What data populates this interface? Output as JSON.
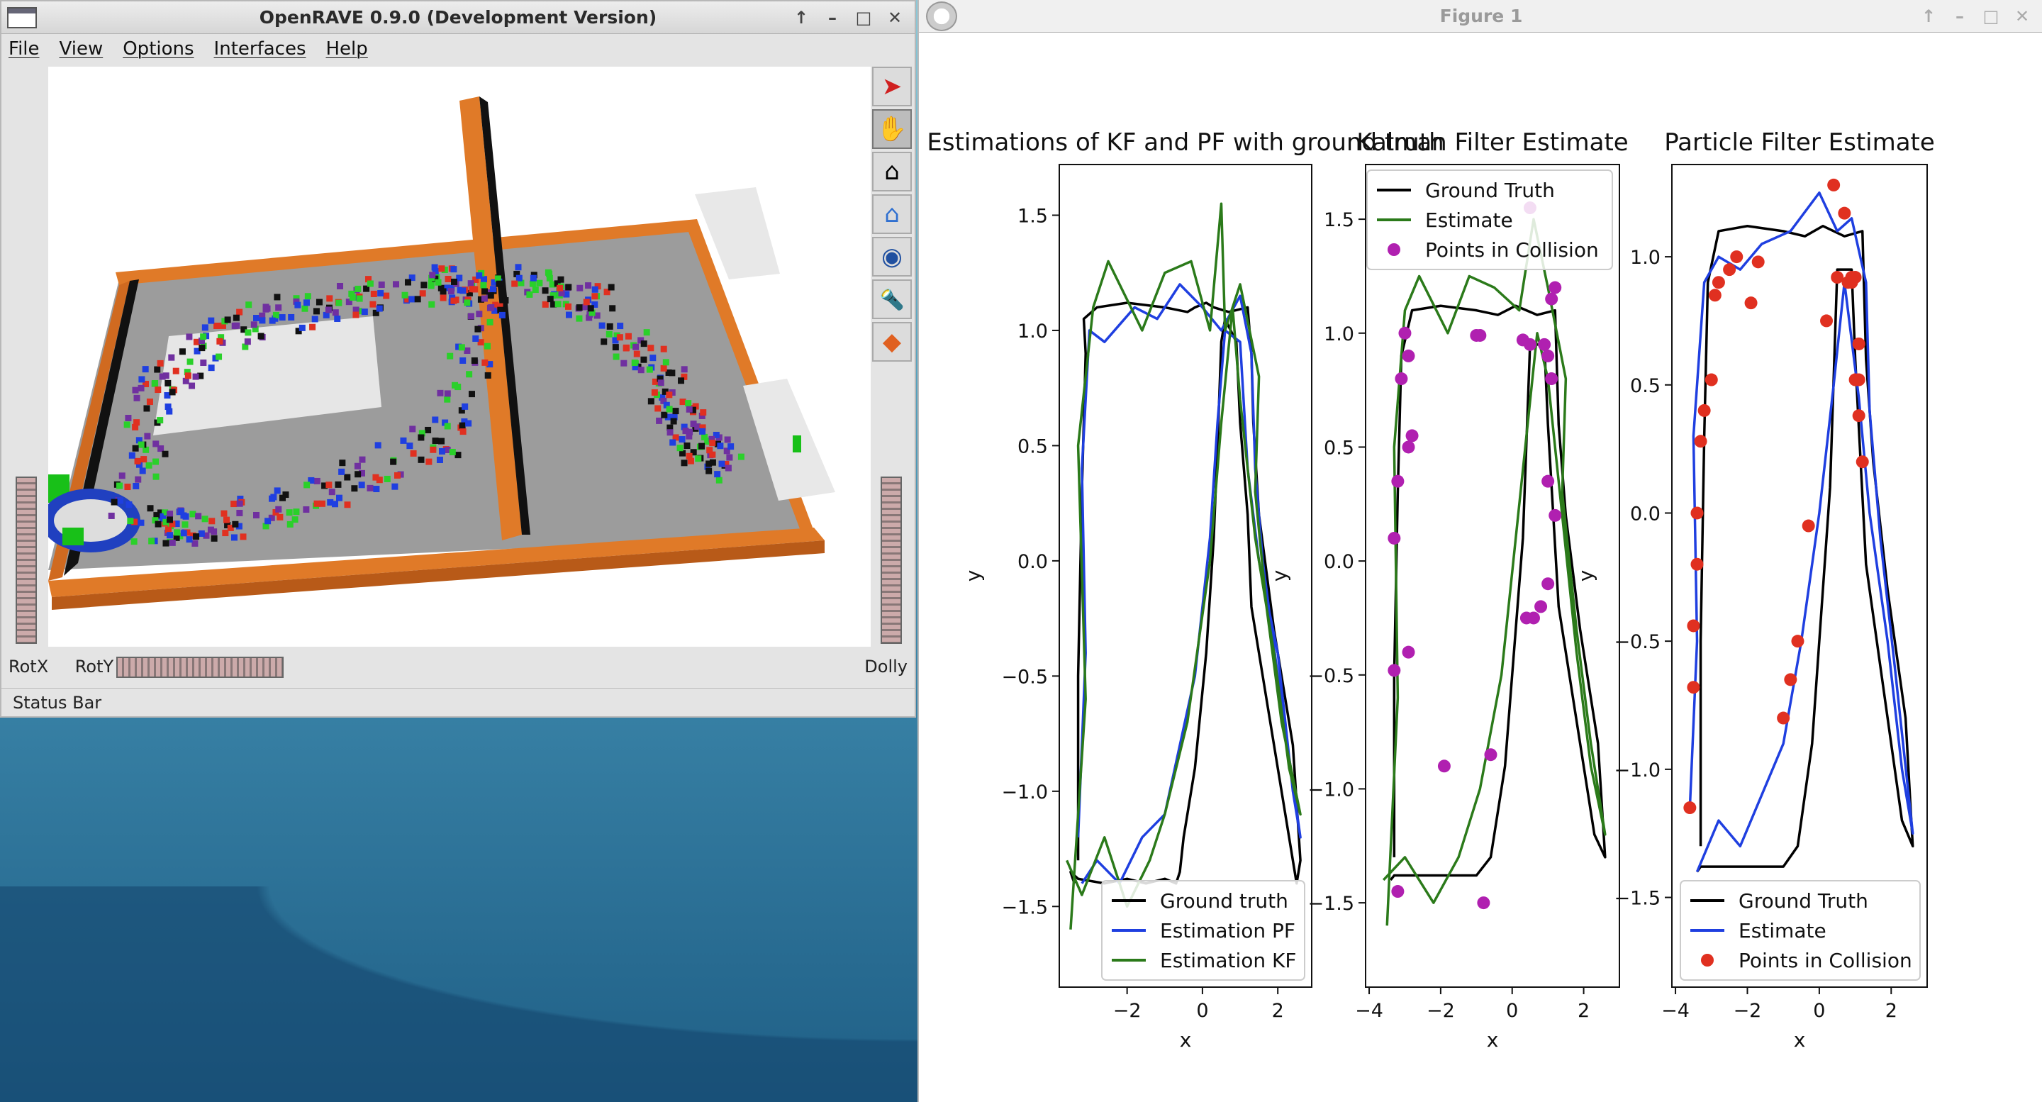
{
  "openrave": {
    "title": "OpenRAVE 0.9.0 (Development Version)",
    "menu": [
      "File",
      "View",
      "Options",
      "Interfaces",
      "Help"
    ],
    "window_buttons": [
      "↑",
      "–",
      "□",
      "✕"
    ],
    "tools": [
      {
        "icon": "select-arrow-icon",
        "glyph": "➤",
        "active": false
      },
      {
        "icon": "hand-icon",
        "glyph": "✋",
        "active": true
      },
      {
        "icon": "home-icon",
        "glyph": "⌂",
        "active": false
      },
      {
        "icon": "view-all-icon",
        "glyph": "⌂",
        "active": false
      },
      {
        "icon": "eye-icon",
        "glyph": "◉",
        "active": false
      },
      {
        "icon": "flashlight-icon",
        "glyph": "🔦",
        "active": false
      },
      {
        "icon": "perspective-icon",
        "glyph": "◆",
        "active": false
      }
    ],
    "rotx_label": "RotX",
    "roty_label": "RotY",
    "dolly_label": "Dolly",
    "status": "Status Bar"
  },
  "figure": {
    "title": "Figure 1",
    "window_buttons": [
      "↑",
      "–",
      "□",
      "✕"
    ]
  },
  "chart_data": [
    {
      "type": "line",
      "title": "Estimations of KF and PF with ground truth",
      "xlabel": "x",
      "ylabel": "y",
      "xlim": [
        -3.8,
        2.9
      ],
      "ylim": [
        -1.85,
        1.72
      ],
      "xticks": [
        -2,
        0,
        2
      ],
      "yticks": [
        -1.5,
        -1.0,
        -0.5,
        0.0,
        0.5,
        1.0,
        1.5
      ],
      "legend_position": "lower right",
      "grid": false,
      "series": [
        {
          "name": "Ground truth",
          "color": "#000000",
          "x": [
            -3.3,
            -3.3,
            -3.2,
            -3.1,
            -3.15,
            -2.8,
            -2.0,
            -1.0,
            -0.4,
            -0.2,
            0.1,
            0.3,
            0.7,
            1.2,
            1.3,
            1.35,
            1.5,
            1.9,
            2.4,
            2.6,
            2.5,
            2.3,
            1.8,
            1.3,
            1.2,
            1.0,
            0.9,
            0.6,
            0.5,
            0.4,
            0.3,
            0.1,
            -0.2,
            -0.5,
            -0.6,
            -0.7,
            -1.0,
            -1.5,
            -2.0,
            -2.6,
            -3.3,
            -3.5,
            -3.4
          ],
          "y": [
            -1.3,
            -0.5,
            0.3,
            0.9,
            1.05,
            1.1,
            1.12,
            1.1,
            1.08,
            1.1,
            1.12,
            1.1,
            1.08,
            1.1,
            0.9,
            0.6,
            0.2,
            -0.3,
            -0.8,
            -1.3,
            -1.4,
            -1.2,
            -0.7,
            -0.2,
            0.2,
            0.6,
            0.95,
            1.05,
            0.95,
            0.5,
            0.1,
            -0.4,
            -0.9,
            -1.2,
            -1.35,
            -1.4,
            -1.38,
            -1.4,
            -1.38,
            -1.4,
            -1.38,
            -1.35,
            -1.4
          ]
        },
        {
          "name": "Estimation PF",
          "color": "#1f3fe0",
          "x": [
            -3.3,
            -3.1,
            -3.2,
            -3.0,
            -2.6,
            -1.8,
            -1.2,
            -0.6,
            0.0,
            0.5,
            1.0,
            1.3,
            1.4,
            1.6,
            2.0,
            2.6,
            2.4,
            2.0,
            1.5,
            1.2,
            1.0,
            0.6,
            0.4,
            0.2,
            -0.2,
            -0.6,
            -1.0,
            -1.6,
            -2.2,
            -2.8,
            -3.2
          ],
          "y": [
            -1.2,
            -0.4,
            0.4,
            1.0,
            0.95,
            1.1,
            1.05,
            1.2,
            1.1,
            1.0,
            1.15,
            0.9,
            0.4,
            0.0,
            -0.5,
            -1.2,
            -1.0,
            -0.4,
            0.0,
            0.4,
            0.95,
            1.0,
            0.6,
            0.1,
            -0.5,
            -0.8,
            -1.1,
            -1.2,
            -1.4,
            -1.3,
            -1.4
          ]
        },
        {
          "name": "Estimation KF",
          "color": "#2b7a1a",
          "x": [
            -3.5,
            -3.1,
            -3.3,
            -2.9,
            -2.5,
            -1.6,
            -1.0,
            -0.3,
            0.2,
            0.5,
            0.6,
            1.0,
            1.5,
            1.4,
            1.7,
            2.1,
            2.6,
            2.3,
            1.9,
            1.4,
            1.0,
            0.8,
            0.5,
            0.2,
            -0.4,
            -1.0,
            -1.4,
            -2.0,
            -2.6,
            -3.2,
            -3.6
          ],
          "y": [
            -1.6,
            -0.6,
            0.5,
            1.1,
            1.3,
            1.0,
            1.25,
            1.3,
            1.0,
            1.55,
            1.0,
            1.2,
            0.8,
            0.3,
            -0.2,
            -0.7,
            -1.1,
            -0.9,
            -0.4,
            0.1,
            0.7,
            1.1,
            0.6,
            0.0,
            -0.7,
            -1.1,
            -1.3,
            -1.5,
            -1.2,
            -1.45,
            -1.3
          ]
        }
      ]
    },
    {
      "type": "line",
      "title": "Kalman Filter Estimate",
      "xlabel": "x",
      "ylabel": "y",
      "xlim": [
        -4.1,
        3.0
      ],
      "ylim": [
        -1.87,
        1.74
      ],
      "xticks": [
        -4,
        -2,
        0,
        2
      ],
      "yticks": [
        -1.5,
        -1.0,
        -0.5,
        0.0,
        0.5,
        1.0,
        1.5
      ],
      "legend_position": "upper right",
      "grid": false,
      "series": [
        {
          "name": "Ground Truth",
          "color": "#000000",
          "x": [
            -3.3,
            -3.3,
            -3.2,
            -3.1,
            -2.8,
            -2.0,
            -1.0,
            -0.4,
            0.1,
            0.7,
            1.2,
            1.3,
            1.5,
            1.9,
            2.4,
            2.6,
            2.3,
            1.8,
            1.3,
            1.0,
            0.9,
            0.5,
            0.3,
            -0.2,
            -0.6,
            -1.0,
            -2.0,
            -3.3,
            -3.4
          ],
          "y": [
            -1.3,
            -0.5,
            0.3,
            0.9,
            1.1,
            1.12,
            1.1,
            1.08,
            1.12,
            1.08,
            1.1,
            0.6,
            0.2,
            -0.3,
            -0.8,
            -1.3,
            -1.2,
            -0.7,
            -0.2,
            0.6,
            0.95,
            0.95,
            0.1,
            -0.9,
            -1.3,
            -1.38,
            -1.38,
            -1.38,
            -1.4
          ]
        },
        {
          "name": "Estimate",
          "color": "#2b7a1a",
          "x": [
            -3.5,
            -3.2,
            -3.3,
            -3.0,
            -2.6,
            -1.8,
            -1.2,
            -0.5,
            0.2,
            0.6,
            1.0,
            1.5,
            1.4,
            1.8,
            2.2,
            2.6,
            2.2,
            1.8,
            1.4,
            1.0,
            0.7,
            0.3,
            -0.3,
            -0.9,
            -1.5,
            -2.2,
            -3.0,
            -3.6
          ],
          "y": [
            -1.6,
            -0.6,
            0.5,
            1.1,
            1.25,
            1.0,
            1.25,
            1.2,
            1.1,
            1.5,
            1.2,
            0.8,
            0.3,
            -0.3,
            -0.8,
            -1.2,
            -0.9,
            -0.4,
            0.2,
            0.8,
            1.0,
            0.4,
            -0.5,
            -1.0,
            -1.3,
            -1.5,
            -1.3,
            -1.4
          ]
        },
        {
          "name": "Points in Collision",
          "color": "#b020b0",
          "kind": "scatter",
          "x": [
            -3.0,
            -2.9,
            -3.1,
            -2.8,
            -2.9,
            -3.2,
            -3.3,
            -2.9,
            -3.3,
            -3.2,
            -1.9,
            -0.8,
            -0.6,
            -0.9,
            -1.0,
            0.3,
            0.5,
            0.9,
            1.0,
            1.1,
            1.0,
            1.2,
            1.0,
            0.8,
            0.6,
            0.4,
            0.5,
            1.2,
            1.1
          ],
          "y": [
            1.0,
            0.9,
            0.8,
            0.55,
            0.5,
            0.35,
            0.1,
            -0.4,
            -0.48,
            -1.45,
            -0.9,
            -1.5,
            -0.85,
            0.99,
            0.99,
            0.97,
            0.95,
            0.95,
            0.9,
            0.8,
            0.35,
            0.2,
            -0.1,
            -0.2,
            -0.25,
            -0.25,
            1.55,
            1.2,
            1.15
          ]
        }
      ]
    },
    {
      "type": "line",
      "title": "Particle Filter Estimate",
      "xlabel": "x",
      "ylabel": "y",
      "xlim": [
        -4.1,
        3.0
      ],
      "ylim": [
        -1.85,
        1.36
      ],
      "xticks": [
        -4,
        -2,
        0,
        2
      ],
      "yticks": [
        -1.5,
        -1.0,
        -0.5,
        0.0,
        0.5,
        1.0
      ],
      "legend_position": "lower right",
      "grid": false,
      "series": [
        {
          "name": "Ground Truth",
          "color": "#000000",
          "x": [
            -3.3,
            -3.3,
            -3.2,
            -3.1,
            -2.8,
            -2.0,
            -1.0,
            -0.4,
            0.1,
            0.7,
            1.2,
            1.3,
            1.5,
            1.9,
            2.4,
            2.6,
            2.3,
            1.8,
            1.3,
            1.0,
            0.9,
            0.5,
            0.3,
            -0.2,
            -0.6,
            -1.0,
            -2.0,
            -3.3,
            -3.4
          ],
          "y": [
            -1.3,
            -0.5,
            0.3,
            0.9,
            1.1,
            1.12,
            1.1,
            1.08,
            1.12,
            1.08,
            1.1,
            0.6,
            0.2,
            -0.3,
            -0.8,
            -1.3,
            -1.2,
            -0.7,
            -0.2,
            0.6,
            0.95,
            0.95,
            0.1,
            -0.9,
            -1.3,
            -1.38,
            -1.38,
            -1.38,
            -1.4
          ]
        },
        {
          "name": "Estimate",
          "color": "#1f3fe0",
          "x": [
            -3.6,
            -3.4,
            -3.5,
            -3.2,
            -2.8,
            -2.2,
            -1.6,
            -0.8,
            0.0,
            0.5,
            0.9,
            1.3,
            1.4,
            1.7,
            2.1,
            2.6,
            2.3,
            1.9,
            1.4,
            1.1,
            0.7,
            0.4,
            0.0,
            -0.5,
            -1.0,
            -1.6,
            -2.2,
            -2.8,
            -3.4
          ],
          "y": [
            -1.15,
            -0.5,
            0.3,
            0.9,
            1.0,
            0.95,
            1.05,
            1.1,
            1.25,
            1.1,
            1.15,
            0.9,
            0.4,
            -0.1,
            -0.6,
            -1.25,
            -1.0,
            -0.5,
            0.0,
            0.45,
            0.9,
            0.5,
            0.0,
            -0.5,
            -0.9,
            -1.1,
            -1.3,
            -1.2,
            -1.4
          ]
        },
        {
          "name": "Points in Collision",
          "color": "#e03020",
          "kind": "scatter",
          "x": [
            -3.6,
            -3.5,
            -3.5,
            -3.4,
            -3.4,
            -3.3,
            -3.2,
            -3.0,
            -2.9,
            -2.8,
            -2.5,
            -2.3,
            -1.9,
            -1.7,
            0.4,
            0.8,
            1.0,
            1.1,
            1.2,
            1.1,
            0.9,
            0.7,
            0.5,
            0.2,
            -0.3,
            -0.6,
            -0.8,
            -1.0,
            0.9,
            1.0,
            1.1
          ],
          "y": [
            -1.15,
            -0.68,
            -0.44,
            -0.2,
            0.0,
            0.28,
            0.4,
            0.52,
            0.85,
            0.9,
            0.95,
            1.0,
            0.82,
            0.98,
            1.28,
            0.9,
            0.52,
            0.38,
            0.2,
            0.52,
            0.92,
            1.17,
            0.92,
            0.75,
            -0.05,
            -0.5,
            -0.65,
            -0.8,
            0.9,
            0.92,
            0.66
          ]
        }
      ]
    }
  ]
}
